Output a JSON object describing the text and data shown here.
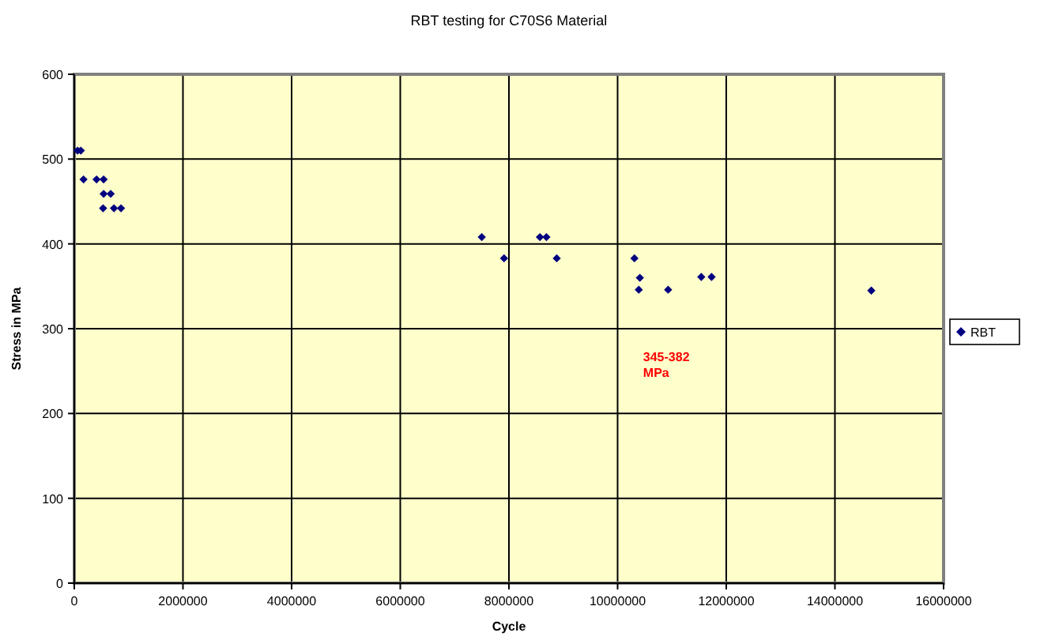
{
  "chart_data": {
    "type": "scatter",
    "title": "RBT testing for C70S6 Material",
    "xlabel": "Cycle",
    "ylabel": "Stress in MPa",
    "annotations": [
      "345-382 MPa"
    ],
    "series": [
      {
        "name": "RBT",
        "color": "#000080",
        "x": [
          60000,
          120000,
          170000,
          410000,
          540000,
          540000,
          670000,
          530000,
          730000,
          860000,
          7500000,
          7910000,
          8570000,
          8690000,
          8880000,
          10310000,
          10410000,
          10390000,
          10930000,
          11540000,
          11730000,
          14670000
        ],
        "values": [
          510,
          510,
          476,
          476,
          476,
          459,
          459,
          442,
          442,
          442,
          408,
          383,
          408,
          408,
          383,
          383,
          360,
          346,
          346,
          361,
          361,
          345
        ]
      }
    ],
    "xlim": [
      0,
      16000000
    ],
    "xticks": [
      0,
      2000000,
      4000000,
      6000000,
      8000000,
      10000000,
      12000000,
      14000000,
      16000000
    ],
    "ylim": [
      0,
      600
    ],
    "yticks": [
      0,
      100,
      200,
      300,
      400,
      500,
      600
    ],
    "grid": true,
    "legend": "right",
    "marker": "diamond"
  }
}
